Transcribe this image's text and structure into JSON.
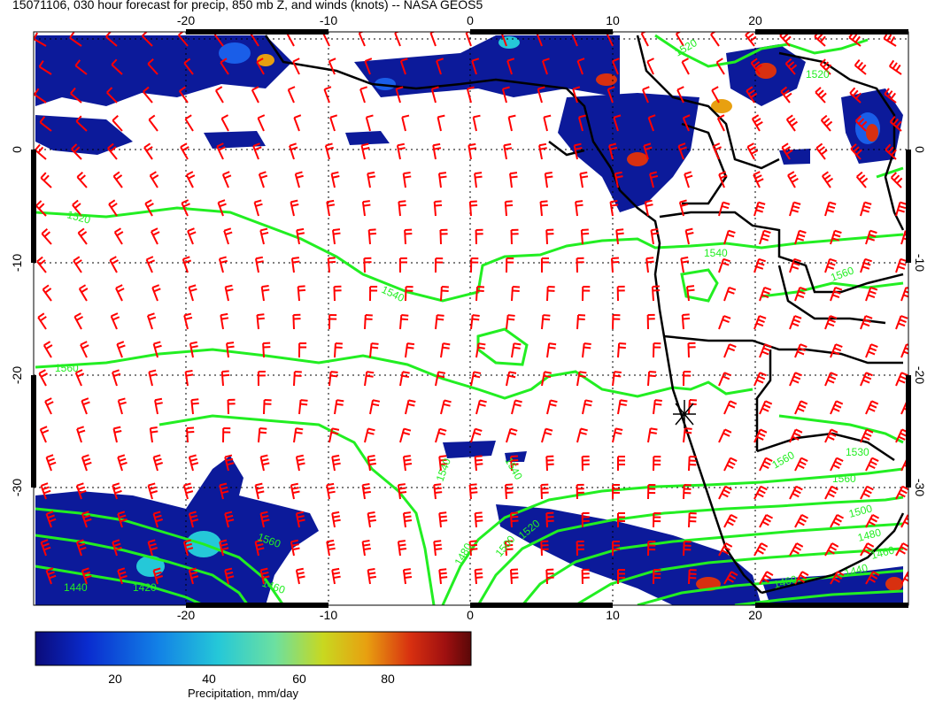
{
  "title": "15071106, 030 hour forecast for precip, 850 mb Z, and winds (knots) -- NASA GEOS5",
  "map": {
    "lon_range": [
      -30,
      30
    ],
    "lat_range": [
      -40,
      10
    ],
    "lon_ticks": [
      "-20",
      "-10",
      "0",
      "10",
      "20"
    ],
    "lat_ticks": [
      "0",
      "-10",
      "-20",
      "-30"
    ],
    "contour_color": "#22ee22",
    "barb_color": "#ff0000",
    "coast_color": "#000000",
    "contour_labels": [
      "1520",
      "1520",
      "1540",
      "1560",
      "1520",
      "1540",
      "1560",
      "1530",
      "1540",
      "1560",
      "1500",
      "1480",
      "1460",
      "1440",
      "1460",
      "1480",
      "1500",
      "1520",
      "1540",
      "1560",
      "1560",
      "1440",
      "1420",
      "1460"
    ],
    "station_marker": "asterisk"
  },
  "colorbar": {
    "ticks": [
      "20",
      "40",
      "60",
      "80"
    ],
    "label": "Precipitation, mm/day",
    "range": [
      0,
      100
    ],
    "colors": [
      "#0b0b7a",
      "#0a2ccf",
      "#1280e6",
      "#25c8d8",
      "#6ce0a0",
      "#c8d820",
      "#e8a010",
      "#d83010",
      "#a01010",
      "#5a0808"
    ]
  }
}
